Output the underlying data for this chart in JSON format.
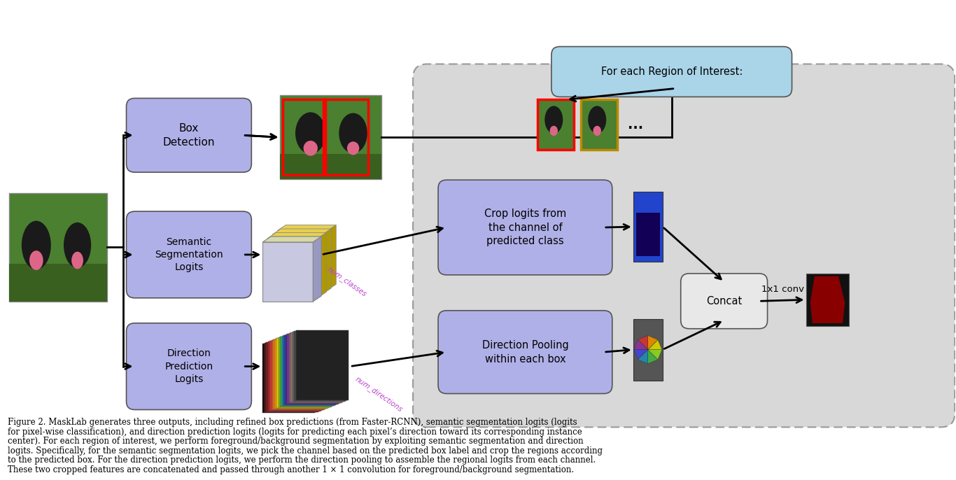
{
  "bg_color": "#ffffff",
  "fig_width": 13.66,
  "fig_height": 6.86,
  "box_detection_label": "Box\nDetection",
  "semantic_label": "Semantic\nSegmentation\nLogits",
  "direction_label": "Direction\nPrediction\nLogits",
  "crop_logits_label": "Crop logits from\nthe channel of\npredicted class",
  "direction_pooling_label": "Direction Pooling\nwithin each box",
  "concat_label": "Concat",
  "roi_label": "For each Region of Interest:",
  "conv_label": "1x1 conv",
  "num_classes_label": "num_classes",
  "num_directions_label": "num_directions",
  "caption_lines": [
    "Figure 2. MaskLab generates three outputs, including refined box predictions (from Faster-RCNN), semantic segmentation logits (logits",
    "for pixel-wise classification), and direction prediction logits (logits for predicting each pixel’s direction toward its corresponding instance",
    "center). For each region of interest, we perform foreground/background segmentation by exploiting semantic segmentation and direction",
    "logits. Specifically, for the semantic segmentation logits, we pick the channel based on the predicted box label and crop the regions according",
    "to the predicted box. For the direction prediction logits, we perform the direction pooling to assemble the regional logits from each channel.",
    "These two cropped features are concatenated and passed through another 1 × 1 convolution for foreground/background segmentation."
  ],
  "box_fill": "#b0b0e8",
  "roi_box_fill": "#aad4e8",
  "panel_fill": "#d8d8d8",
  "concat_fill": "#e8e8e8",
  "arrow_color": "#000000",
  "sem_stack_colors_back": [
    "#e8b800",
    "#d0a800",
    "#b89000",
    "#a07800"
  ],
  "sem_stack_front": "#c8c8e0",
  "sem_stack_top": "#e0d860",
  "sem_stack_right": "#9898b8",
  "dir_stack_colors": [
    "#1a0a0a",
    "#3a1010",
    "#6a1818",
    "#8b2020",
    "#aa2a2a",
    "#cc3333",
    "#dd4455",
    "#ee6622",
    "#ff9900",
    "#cccc00",
    "#88bb22",
    "#22aa55",
    "#1188bb",
    "#334499",
    "#553399",
    "#774488",
    "#996633",
    "#776655",
    "#555555",
    "#333333"
  ],
  "feat1_blue": "#2244cc",
  "feat1_dark": "#110055",
  "final_bg": "#111111",
  "final_dog": "#880000"
}
